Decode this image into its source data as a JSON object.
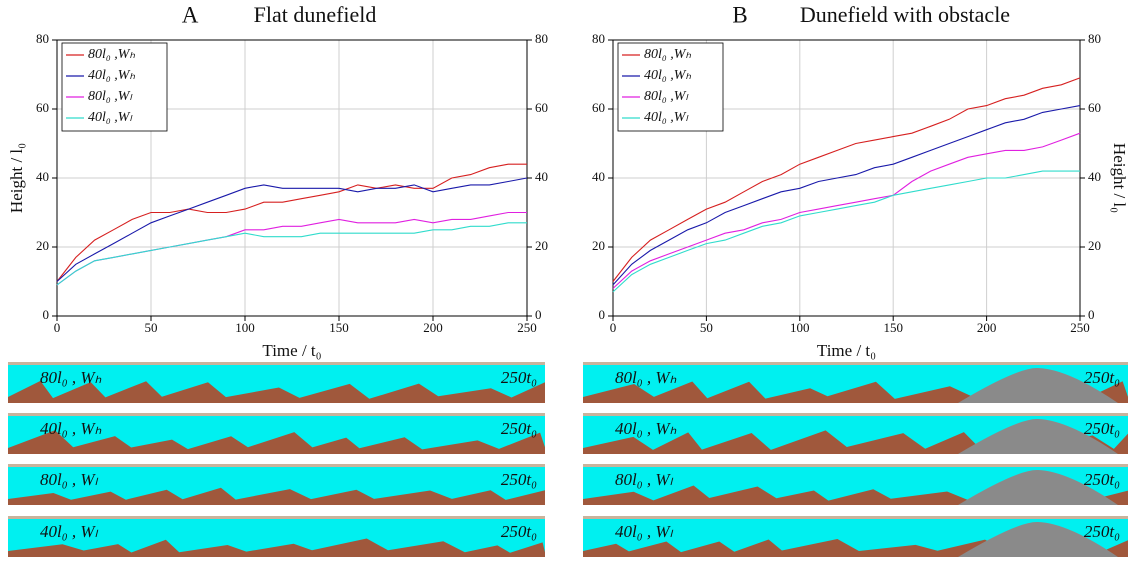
{
  "chart_data": [
    {
      "type": "line",
      "panel_label": "A",
      "title": "Flat dunefield",
      "xlabel": "Time / t₀",
      "ylabel": "Height / l₀",
      "x": [
        0,
        10,
        20,
        30,
        40,
        50,
        60,
        70,
        80,
        90,
        100,
        110,
        120,
        130,
        140,
        150,
        160,
        170,
        180,
        190,
        200,
        210,
        220,
        230,
        240,
        250
      ],
      "xlim": [
        0,
        250
      ],
      "xticks": [
        0,
        50,
        100,
        150,
        200,
        250
      ],
      "ylim": [
        0,
        80
      ],
      "yticks": [
        0,
        20,
        40,
        60,
        80
      ],
      "y2lim": [
        0,
        80
      ],
      "y2ticks": [
        0,
        20,
        40,
        60,
        80
      ],
      "grid": true,
      "legend": "upper-left",
      "series": [
        {
          "name": "80l₀ ,Wₕ",
          "color": "#d62020",
          "values": [
            10,
            17,
            22,
            25,
            28,
            30,
            30,
            31,
            30,
            30,
            31,
            33,
            33,
            34,
            35,
            36,
            38,
            37,
            38,
            37,
            37,
            40,
            41,
            43,
            44,
            44
          ]
        },
        {
          "name": "40l₀ ,Wₕ",
          "color": "#1a1aaa",
          "values": [
            10,
            15,
            18,
            21,
            24,
            27,
            29,
            31,
            33,
            35,
            37,
            38,
            37,
            37,
            37,
            37,
            36,
            37,
            37,
            38,
            36,
            37,
            38,
            38,
            39,
            40
          ]
        },
        {
          "name": "80l₀ ,Wₗ",
          "color": "#e020e0",
          "values": [
            9,
            13,
            16,
            17,
            18,
            19,
            20,
            21,
            22,
            23,
            25,
            25,
            26,
            26,
            27,
            28,
            27,
            27,
            27,
            28,
            27,
            28,
            28,
            29,
            30,
            30
          ]
        },
        {
          "name": "40l₀ ,Wₗ",
          "color": "#30dccc",
          "values": [
            9,
            13,
            16,
            17,
            18,
            19,
            20,
            21,
            22,
            23,
            24,
            23,
            23,
            23,
            24,
            24,
            24,
            24,
            24,
            24,
            25,
            25,
            26,
            26,
            27,
            27
          ]
        }
      ]
    },
    {
      "type": "line",
      "panel_label": "B",
      "title": "Dunefield with obstacle",
      "xlabel": "Time / t₀",
      "y2label": "Height / l₀",
      "x": [
        0,
        10,
        20,
        30,
        40,
        50,
        60,
        70,
        80,
        90,
        100,
        110,
        120,
        130,
        140,
        150,
        160,
        170,
        180,
        190,
        200,
        210,
        220,
        230,
        240,
        250
      ],
      "xlim": [
        0,
        250
      ],
      "xticks": [
        0,
        50,
        100,
        150,
        200,
        250
      ],
      "ylim": [
        0,
        80
      ],
      "yticks": [
        0,
        20,
        40,
        60,
        80
      ],
      "y2lim": [
        0,
        80
      ],
      "y2ticks": [
        0,
        20,
        40,
        60,
        80
      ],
      "grid": true,
      "legend": "upper-left",
      "series": [
        {
          "name": "80l₀ ,Wₕ",
          "color": "#d62020",
          "values": [
            10,
            17,
            22,
            25,
            28,
            31,
            33,
            36,
            39,
            41,
            44,
            46,
            48,
            50,
            51,
            52,
            53,
            55,
            57,
            60,
            61,
            63,
            64,
            66,
            67,
            69
          ]
        },
        {
          "name": "40l₀ ,Wₕ",
          "color": "#1a1aaa",
          "values": [
            9,
            15,
            19,
            22,
            25,
            27,
            30,
            32,
            34,
            36,
            37,
            39,
            40,
            41,
            43,
            44,
            46,
            48,
            50,
            52,
            54,
            56,
            57,
            59,
            60,
            61
          ]
        },
        {
          "name": "80l₀ ,Wₗ",
          "color": "#e020e0",
          "values": [
            8,
            13,
            16,
            18,
            20,
            22,
            24,
            25,
            27,
            28,
            30,
            31,
            32,
            33,
            34,
            35,
            39,
            42,
            44,
            46,
            47,
            48,
            48,
            49,
            51,
            53
          ]
        },
        {
          "name": "40l₀ ,Wₗ",
          "color": "#30dccc",
          "values": [
            7,
            12,
            15,
            17,
            19,
            21,
            22,
            24,
            26,
            27,
            29,
            30,
            31,
            32,
            33,
            35,
            36,
            37,
            38,
            39,
            40,
            40,
            41,
            42,
            42,
            42
          ]
        }
      ]
    }
  ],
  "dune_panels": [
    [
      {
        "label": "80l₀ , Wₕ",
        "time": "250t₀"
      },
      {
        "label": "40l₀ , Wₕ",
        "time": "250t₀"
      },
      {
        "label": "80l₀ , Wₗ",
        "time": "250t₀"
      },
      {
        "label": "40l₀ , Wₗ",
        "time": "250t₀"
      }
    ],
    [
      {
        "label": "80l₀ , Wₕ",
        "time": "250t₀"
      },
      {
        "label": "40l₀ , Wₕ",
        "time": "250t₀"
      },
      {
        "label": "80l₀ , Wₗ",
        "time": "250t₀"
      },
      {
        "label": "40l₀ , Wₗ",
        "time": "250t₀"
      }
    ]
  ]
}
